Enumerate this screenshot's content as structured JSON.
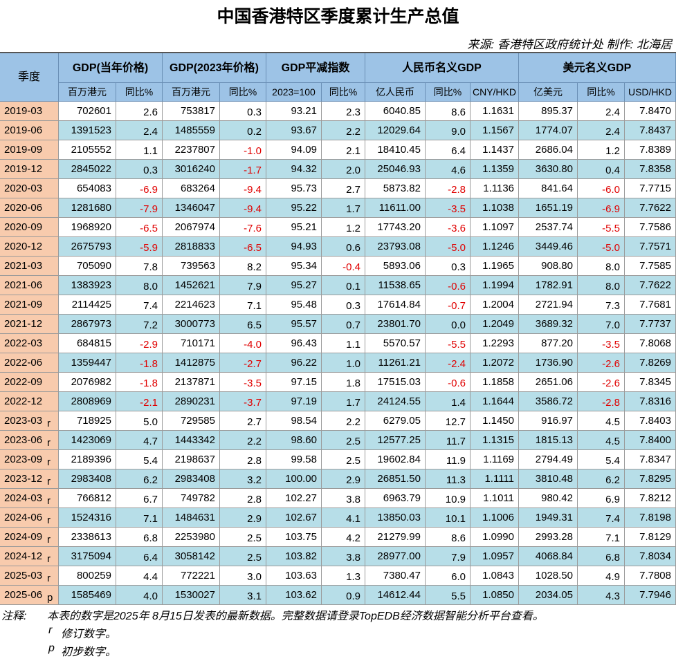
{
  "title": "中国香港特区季度累计生产总值",
  "source": "来源: 香港特区政府统计处   制作: 北海居",
  "header": {
    "quarter": "季度",
    "groups": [
      "GDP(当年价格)",
      "GDP(2023年价格)",
      "GDP平减指数",
      "人民币名义GDP",
      "美元名义GDP"
    ],
    "subheaders": [
      "百万港元",
      "同比%",
      "百万港元",
      "同比%",
      "2023=100",
      "同比%",
      "亿人民币",
      "同比%",
      "CNY/HKD",
      "亿美元",
      "同比%",
      "USD/HKD"
    ]
  },
  "table": {
    "rows": [
      {
        "quarter": "2019-03",
        "cells": [
          "702601",
          "2.6",
          "753817",
          "0.3",
          "93.21",
          "2.3",
          "6040.85",
          "8.6",
          "1.1631",
          "895.37",
          "2.4",
          "7.8470"
        ]
      },
      {
        "quarter": "2019-06",
        "cells": [
          "1391523",
          "2.4",
          "1485559",
          "0.2",
          "93.67",
          "2.2",
          "12029.64",
          "9.0",
          "1.1567",
          "1774.07",
          "2.4",
          "7.8437"
        ]
      },
      {
        "quarter": "2019-09",
        "cells": [
          "2105552",
          "1.1",
          "2237807",
          "-1.0",
          "94.09",
          "2.1",
          "18410.45",
          "6.4",
          "1.1437",
          "2686.04",
          "1.2",
          "7.8389"
        ]
      },
      {
        "quarter": "2019-12",
        "cells": [
          "2845022",
          "0.3",
          "3016240",
          "-1.7",
          "94.32",
          "2.0",
          "25046.93",
          "4.6",
          "1.1359",
          "3630.80",
          "0.4",
          "7.8358"
        ]
      },
      {
        "quarter": "2020-03",
        "cells": [
          "654083",
          "-6.9",
          "683264",
          "-9.4",
          "95.73",
          "2.7",
          "5873.82",
          "-2.8",
          "1.1136",
          "841.64",
          "-6.0",
          "7.7715"
        ]
      },
      {
        "quarter": "2020-06",
        "cells": [
          "1281680",
          "-7.9",
          "1346047",
          "-9.4",
          "95.22",
          "1.7",
          "11611.00",
          "-3.5",
          "1.1038",
          "1651.19",
          "-6.9",
          "7.7622"
        ]
      },
      {
        "quarter": "2020-09",
        "cells": [
          "1968920",
          "-6.5",
          "2067974",
          "-7.6",
          "95.21",
          "1.2",
          "17743.20",
          "-3.6",
          "1.1097",
          "2537.74",
          "-5.5",
          "7.7586"
        ]
      },
      {
        "quarter": "2020-12",
        "cells": [
          "2675793",
          "-5.9",
          "2818833",
          "-6.5",
          "94.93",
          "0.6",
          "23793.08",
          "-5.0",
          "1.1246",
          "3449.46",
          "-5.0",
          "7.7571"
        ]
      },
      {
        "quarter": "2021-03",
        "cells": [
          "705090",
          "7.8",
          "739563",
          "8.2",
          "95.34",
          "-0.4",
          "5893.06",
          "0.3",
          "1.1965",
          "908.80",
          "8.0",
          "7.7585"
        ]
      },
      {
        "quarter": "2021-06",
        "cells": [
          "1383923",
          "8.0",
          "1452621",
          "7.9",
          "95.27",
          "0.1",
          "11538.65",
          "-0.6",
          "1.1994",
          "1782.91",
          "8.0",
          "7.7622"
        ]
      },
      {
        "quarter": "2021-09",
        "cells": [
          "2114425",
          "7.4",
          "2214623",
          "7.1",
          "95.48",
          "0.3",
          "17614.84",
          "-0.7",
          "1.2004",
          "2721.94",
          "7.3",
          "7.7681"
        ]
      },
      {
        "quarter": "2021-12",
        "cells": [
          "2867973",
          "7.2",
          "3000773",
          "6.5",
          "95.57",
          "0.7",
          "23801.70",
          "0.0",
          "1.2049",
          "3689.32",
          "7.0",
          "7.7737"
        ]
      },
      {
        "quarter": "2022-03",
        "cells": [
          "684815",
          "-2.9",
          "710171",
          "-4.0",
          "96.43",
          "1.1",
          "5570.57",
          "-5.5",
          "1.2293",
          "877.20",
          "-3.5",
          "7.8068"
        ]
      },
      {
        "quarter": "2022-06",
        "cells": [
          "1359447",
          "-1.8",
          "1412875",
          "-2.7",
          "96.22",
          "1.0",
          "11261.21",
          "-2.4",
          "1.2072",
          "1736.90",
          "-2.6",
          "7.8269"
        ]
      },
      {
        "quarter": "2022-09",
        "cells": [
          "2076982",
          "-1.8",
          "2137871",
          "-3.5",
          "97.15",
          "1.8",
          "17515.03",
          "-0.6",
          "1.1858",
          "2651.06",
          "-2.6",
          "7.8345"
        ]
      },
      {
        "quarter": "2022-12",
        "cells": [
          "2808969",
          "-2.1",
          "2890231",
          "-3.7",
          "97.19",
          "1.7",
          "24124.55",
          "1.4",
          "1.1644",
          "3586.72",
          "-2.8",
          "7.8316"
        ]
      },
      {
        "quarter": "2023-03",
        "flag": "r",
        "cells": [
          "718925",
          "5.0",
          "729585",
          "2.7",
          "98.54",
          "2.2",
          "6279.05",
          "12.7",
          "1.1450",
          "916.97",
          "4.5",
          "7.8403"
        ]
      },
      {
        "quarter": "2023-06",
        "flag": "r",
        "cells": [
          "1423069",
          "4.7",
          "1443342",
          "2.2",
          "98.60",
          "2.5",
          "12577.25",
          "11.7",
          "1.1315",
          "1815.13",
          "4.5",
          "7.8400"
        ]
      },
      {
        "quarter": "2023-09",
        "flag": "r",
        "cells": [
          "2189396",
          "5.4",
          "2198637",
          "2.8",
          "99.58",
          "2.5",
          "19602.84",
          "11.9",
          "1.1169",
          "2794.49",
          "5.4",
          "7.8347"
        ]
      },
      {
        "quarter": "2023-12",
        "flag": "r",
        "cells": [
          "2983408",
          "6.2",
          "2983408",
          "3.2",
          "100.00",
          "2.9",
          "26851.50",
          "11.3",
          "1.1111",
          "3810.48",
          "6.2",
          "7.8295"
        ]
      },
      {
        "quarter": "2024-03",
        "flag": "r",
        "cells": [
          "766812",
          "6.7",
          "749782",
          "2.8",
          "102.27",
          "3.8",
          "6963.79",
          "10.9",
          "1.1011",
          "980.42",
          "6.9",
          "7.8212"
        ]
      },
      {
        "quarter": "2024-06",
        "flag": "r",
        "cells": [
          "1524316",
          "7.1",
          "1484631",
          "2.9",
          "102.67",
          "4.1",
          "13850.03",
          "10.1",
          "1.1006",
          "1949.31",
          "7.4",
          "7.8198"
        ]
      },
      {
        "quarter": "2024-09",
        "flag": "r",
        "cells": [
          "2338613",
          "6.8",
          "2253980",
          "2.5",
          "103.75",
          "4.2",
          "21279.99",
          "8.6",
          "1.0990",
          "2993.28",
          "7.1",
          "7.8129"
        ]
      },
      {
        "quarter": "2024-12",
        "flag": "r",
        "cells": [
          "3175094",
          "6.4",
          "3058142",
          "2.5",
          "103.82",
          "3.8",
          "28977.00",
          "7.9",
          "1.0957",
          "4068.84",
          "6.8",
          "7.8034"
        ]
      },
      {
        "quarter": "2025-03",
        "flag": "r",
        "cells": [
          "800259",
          "4.4",
          "772221",
          "3.0",
          "103.63",
          "1.3",
          "7380.47",
          "6.0",
          "1.0843",
          "1028.50",
          "4.9",
          "7.7808"
        ]
      },
      {
        "quarter": "2025-06",
        "flag": "p",
        "cells": [
          "1585469",
          "4.0",
          "1530027",
          "3.1",
          "103.62",
          "0.9",
          "14612.44",
          "5.5",
          "1.0850",
          "2034.05",
          "4.3",
          "7.7946"
        ]
      }
    ]
  },
  "notes": {
    "label": "注释:",
    "text": "本表的数字是2025年 8月15日发表的最新数据。完整数据请登录TopEDB经济数据智能分析平台查看。",
    "legend": [
      {
        "symbol": "r",
        "text": "修订数字。"
      },
      {
        "symbol": "p",
        "text": "初步数字。"
      }
    ]
  }
}
